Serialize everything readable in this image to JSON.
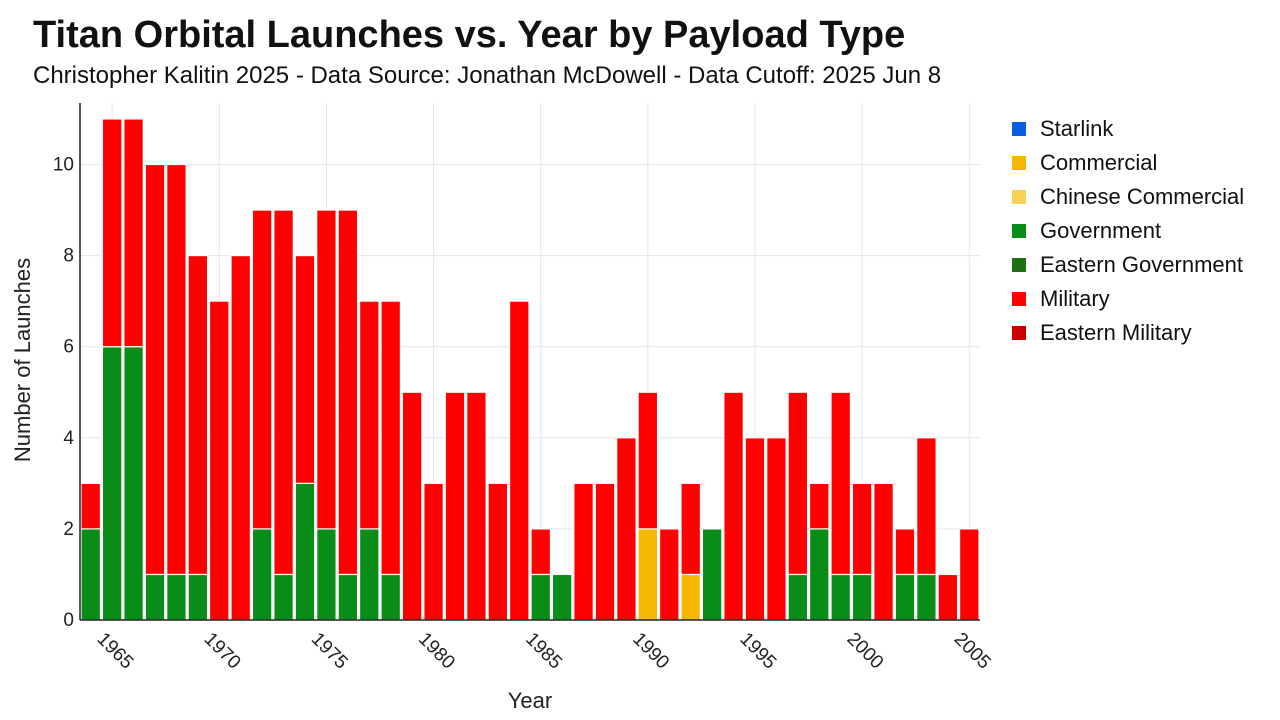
{
  "header": {
    "title": "Titan Orbital Launches vs. Year by Payload Type",
    "subtitle": "Christopher Kalitin 2025 - Data Source: Jonathan McDowell - Data Cutoff: 2025 Jun 8"
  },
  "legend": {
    "placement": "right",
    "items": [
      {
        "label": "Starlink",
        "color": "#0a5fe0"
      },
      {
        "label": "Commercial",
        "color": "#f5b800"
      },
      {
        "label": "Chinese Commercial",
        "color": "#f6d254"
      },
      {
        "label": "Government",
        "color": "#0a8c18"
      },
      {
        "label": "Eastern Government",
        "color": "#1f6f14"
      },
      {
        "label": "Military",
        "color": "#ff0000"
      },
      {
        "label": "Eastern Military",
        "color": "#c80000"
      }
    ]
  },
  "chart_data": {
    "type": "bar",
    "stacked": true,
    "xlabel": "Year",
    "ylabel": "Number of Launches",
    "xlim": [
      1963.5,
      2005.5
    ],
    "ylim": [
      0,
      11.35
    ],
    "x_ticks": [
      1965,
      1970,
      1975,
      1980,
      1985,
      1990,
      1995,
      2000,
      2005
    ],
    "y_ticks": [
      0,
      2,
      4,
      6,
      8,
      10
    ],
    "grid": true,
    "x": [
      1964,
      1965,
      1966,
      1967,
      1968,
      1969,
      1970,
      1971,
      1972,
      1973,
      1974,
      1975,
      1976,
      1977,
      1978,
      1979,
      1980,
      1981,
      1982,
      1983,
      1984,
      1985,
      1986,
      1987,
      1988,
      1989,
      1990,
      1991,
      1992,
      1993,
      1994,
      1995,
      1996,
      1997,
      1998,
      1999,
      2000,
      2001,
      2002,
      2003,
      2004,
      2005
    ],
    "series": [
      {
        "name": "Starlink",
        "color": "#0a5fe0",
        "values": [
          0,
          0,
          0,
          0,
          0,
          0,
          0,
          0,
          0,
          0,
          0,
          0,
          0,
          0,
          0,
          0,
          0,
          0,
          0,
          0,
          0,
          0,
          0,
          0,
          0,
          0,
          0,
          0,
          0,
          0,
          0,
          0,
          0,
          0,
          0,
          0,
          0,
          0,
          0,
          0,
          0,
          0
        ]
      },
      {
        "name": "Commercial",
        "color": "#f5b800",
        "values": [
          0,
          0,
          0,
          0,
          0,
          0,
          0,
          0,
          0,
          0,
          0,
          0,
          0,
          0,
          0,
          0,
          0,
          0,
          0,
          0,
          0,
          0,
          0,
          0,
          0,
          0,
          2,
          0,
          1,
          0,
          0,
          0,
          0,
          0,
          0,
          0,
          0,
          0,
          0,
          0,
          0,
          0
        ]
      },
      {
        "name": "Chinese Commercial",
        "color": "#f6d254",
        "values": [
          0,
          0,
          0,
          0,
          0,
          0,
          0,
          0,
          0,
          0,
          0,
          0,
          0,
          0,
          0,
          0,
          0,
          0,
          0,
          0,
          0,
          0,
          0,
          0,
          0,
          0,
          0,
          0,
          0,
          0,
          0,
          0,
          0,
          0,
          0,
          0,
          0,
          0,
          0,
          0,
          0,
          0
        ]
      },
      {
        "name": "Government",
        "color": "#0a8c18",
        "values": [
          2,
          6,
          6,
          1,
          1,
          1,
          0,
          0,
          2,
          1,
          3,
          2,
          1,
          2,
          1,
          0,
          0,
          0,
          0,
          0,
          0,
          1,
          1,
          0,
          0,
          0,
          0,
          0,
          0,
          2,
          0,
          0,
          0,
          1,
          2,
          1,
          1,
          0,
          1,
          1,
          0,
          0
        ]
      },
      {
        "name": "Eastern Government",
        "color": "#1f6f14",
        "values": [
          0,
          0,
          0,
          0,
          0,
          0,
          0,
          0,
          0,
          0,
          0,
          0,
          0,
          0,
          0,
          0,
          0,
          0,
          0,
          0,
          0,
          0,
          0,
          0,
          0,
          0,
          0,
          0,
          0,
          0,
          0,
          0,
          0,
          0,
          0,
          0,
          0,
          0,
          0,
          0,
          0,
          0
        ]
      },
      {
        "name": "Military",
        "color": "#ff0000",
        "values": [
          1,
          5,
          5,
          9,
          9,
          7,
          7,
          8,
          7,
          8,
          5,
          7,
          8,
          5,
          6,
          5,
          3,
          5,
          5,
          3,
          7,
          1,
          0,
          3,
          3,
          4,
          3,
          2,
          2,
          0,
          5,
          4,
          4,
          4,
          1,
          4,
          2,
          3,
          1,
          3,
          1,
          2
        ]
      },
      {
        "name": "Eastern Military",
        "color": "#c80000",
        "values": [
          0,
          0,
          0,
          0,
          0,
          0,
          0,
          0,
          0,
          0,
          0,
          0,
          0,
          0,
          0,
          0,
          0,
          0,
          0,
          0,
          0,
          0,
          0,
          0,
          0,
          0,
          0,
          0,
          0,
          0,
          0,
          0,
          0,
          0,
          0,
          0,
          0,
          0,
          0,
          0,
          0,
          0
        ]
      }
    ]
  }
}
